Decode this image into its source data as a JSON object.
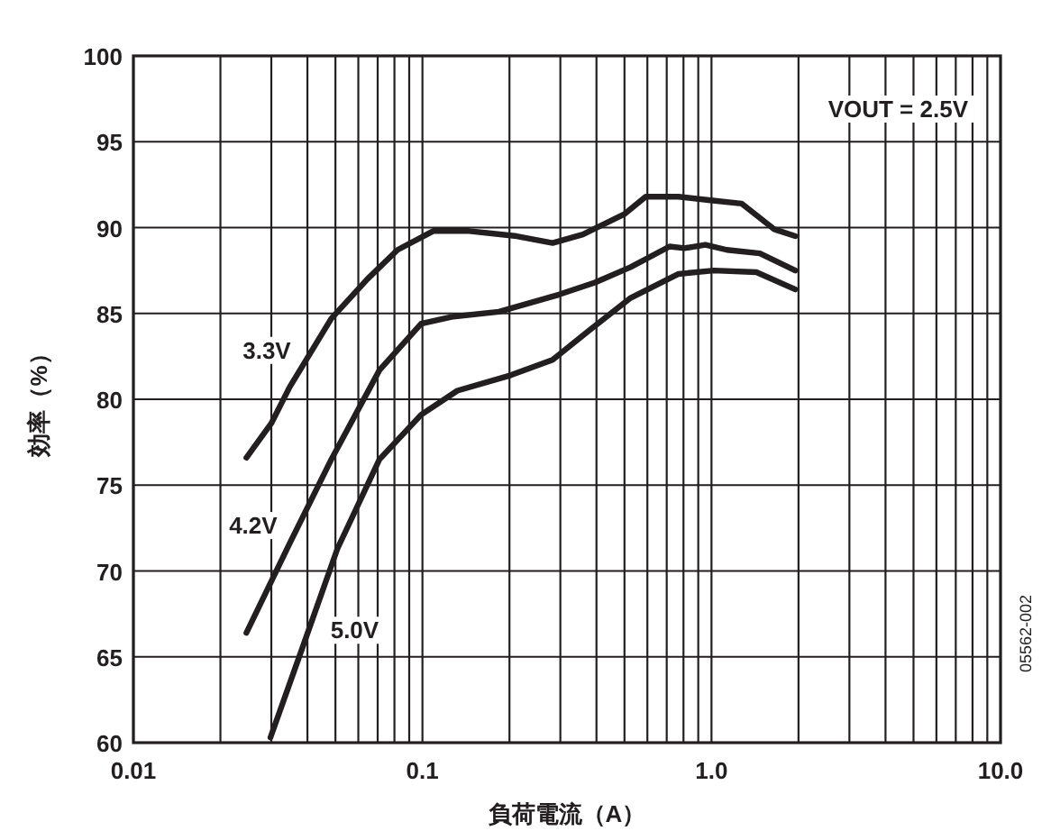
{
  "chart_data": {
    "type": "line",
    "xlabel": "負荷電流（A）",
    "ylabel": "効率（%）",
    "log": "x",
    "grid": true,
    "xlim": [
      0.01,
      10
    ],
    "ylim": [
      60,
      100
    ],
    "xticks": [
      {
        "value": 0.01,
        "label": "0.01"
      },
      {
        "value": 0.1,
        "label": "0.1"
      },
      {
        "value": 1,
        "label": "1.0"
      },
      {
        "value": 10,
        "label": "10.0"
      }
    ],
    "yticks": [
      60,
      65,
      70,
      75,
      80,
      85,
      90,
      95,
      100
    ],
    "annotations": [
      "VOUT = 2.5V",
      "05562-002"
    ],
    "series": [
      {
        "name": "3.3V",
        "color": "#231f20",
        "x": [
          0.0246,
          0.03,
          0.0347,
          0.0484,
          0.0645,
          0.082,
          0.109,
          0.145,
          0.212,
          0.282,
          0.359,
          0.501,
          0.592,
          0.769,
          0.977,
          1.27,
          1.65,
          1.95
        ],
        "values": [
          76.6,
          78.6,
          80.7,
          84.7,
          87.0,
          88.7,
          89.8,
          89.8,
          89.5,
          89.1,
          89.6,
          90.8,
          91.8,
          91.8,
          91.6,
          91.4,
          89.9,
          89.5
        ]
      },
      {
        "name": "4.2V",
        "color": "#231f20",
        "x": [
          0.0246,
          0.0347,
          0.0484,
          0.071,
          0.099,
          0.126,
          0.184,
          0.297,
          0.395,
          0.525,
          0.716,
          0.807,
          0.953,
          1.13,
          1.47,
          1.95
        ],
        "values": [
          66.4,
          71.6,
          76.5,
          81.7,
          84.4,
          84.8,
          85.1,
          86.1,
          86.8,
          87.7,
          88.9,
          88.8,
          89.0,
          88.7,
          88.5,
          87.5
        ]
      },
      {
        "name": "5.0V",
        "color": "#231f20",
        "x": [
          0.0298,
          0.0382,
          0.0508,
          0.071,
          0.099,
          0.132,
          0.202,
          0.282,
          0.377,
          0.525,
          0.769,
          1.02,
          1.43,
          1.95
        ],
        "values": [
          60.3,
          65.4,
          71.3,
          76.5,
          79.1,
          80.5,
          81.4,
          82.3,
          84.0,
          85.9,
          87.3,
          87.5,
          87.4,
          86.4
        ]
      }
    ]
  }
}
